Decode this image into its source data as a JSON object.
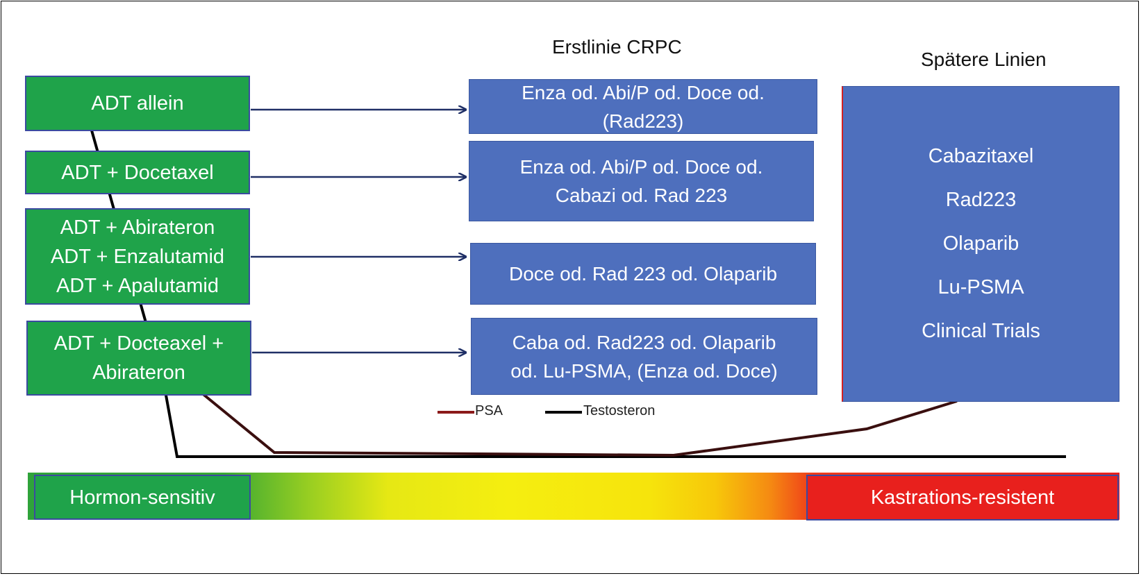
{
  "headers": {
    "first_line": "Erstlinie CRPC",
    "later_lines": "Spätere Linien"
  },
  "left_boxes": [
    {
      "lines": [
        "ADT allein"
      ]
    },
    {
      "lines": [
        "ADT + Docetaxel"
      ]
    },
    {
      "lines": [
        "ADT + Abirateron",
        "ADT + Enzalutamid",
        "ADT + Apalutamid"
      ]
    },
    {
      "lines": [
        "ADT + Docteaxel +",
        "Abirateron"
      ]
    }
  ],
  "first_line_boxes": [
    {
      "lines": [
        "Enza od. Abi/P od. Doce od.",
        "(Rad223)"
      ]
    },
    {
      "lines": [
        "Enza od. Abi/P od. Doce od.",
        "Cabazi od. Rad 223"
      ]
    },
    {
      "lines": [
        "Doce od. Rad 223 od. Olaparib"
      ]
    },
    {
      "lines": [
        "Caba od. Rad223 od.  Olaparib",
        "od. Lu-PSMA, (Enza od. Doce)"
      ]
    }
  ],
  "later_box": {
    "items": [
      "Cabazitaxel",
      "Rad223",
      "Olaparib",
      "Lu-PSMA",
      "Clinical Trials"
    ]
  },
  "legend": {
    "psa": "PSA",
    "testosterone": "Testosteron",
    "psa_color": "#8b1a1a",
    "testosterone_color": "#000000"
  },
  "stage_bar": {
    "hormone_sensitive": "Hormon-sensitiv",
    "castration_resistant": "Kastrations-resistent"
  },
  "colors": {
    "green": "#1fa34a",
    "blue": "#4e6fbd",
    "red": "#e8201d"
  }
}
